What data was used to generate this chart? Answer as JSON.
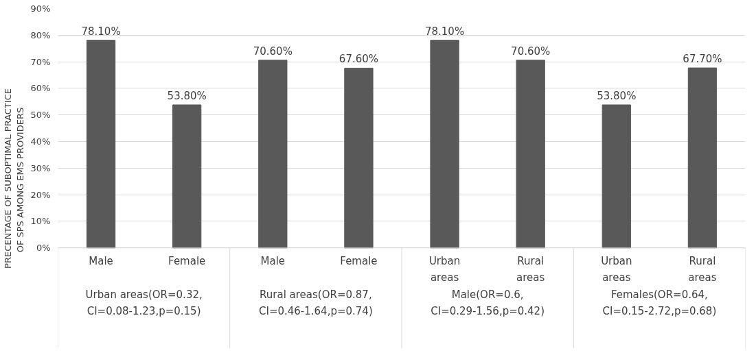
{
  "chart_data": {
    "type": "bar",
    "ylabel": "PRECENTAGE OF SUBOPTIMAL PRACTICE OF SPS  AMONG EMS PROVIDERS",
    "categories": [
      "Male",
      "Female",
      "Male",
      "Female",
      "Urban areas",
      "Rural areas",
      "Urban areas",
      "Rural areas"
    ],
    "values": [
      78.1,
      53.8,
      70.6,
      67.6,
      78.1,
      70.6,
      53.8,
      67.7
    ],
    "value_labels": [
      "78.10%",
      "53.80%",
      "70.60%",
      "67.60%",
      "78.10%",
      "70.60%",
      "53.80%",
      "67.70%"
    ],
    "color": "#595959",
    "ylim": [
      0,
      90
    ],
    "yticks": [
      {
        "value": 0,
        "label": "0%"
      },
      {
        "value": 10,
        "label": "10%"
      },
      {
        "value": 20,
        "label": "20%"
      },
      {
        "value": 30,
        "label": "30%"
      },
      {
        "value": 40,
        "label": "40%"
      },
      {
        "value": 50,
        "label": "50%"
      },
      {
        "value": 60,
        "label": "60%"
      },
      {
        "value": 70,
        "label": "70%"
      },
      {
        "value": 80,
        "label": "80%"
      },
      {
        "value": 90,
        "label": "90%"
      }
    ],
    "grid": "y",
    "annotations": [
      "Urban areas(OR=0.32, CI=0.08-1.23,p=0.15)",
      "Rural areas(OR=0.87, CI=0.46-1.64,p=0.74)",
      "Male(OR=0.6, CI=0.29-1.56,p=0.42)",
      "Females(OR=0.64, CI=0.15-2.72,p=0.68)"
    ]
  }
}
